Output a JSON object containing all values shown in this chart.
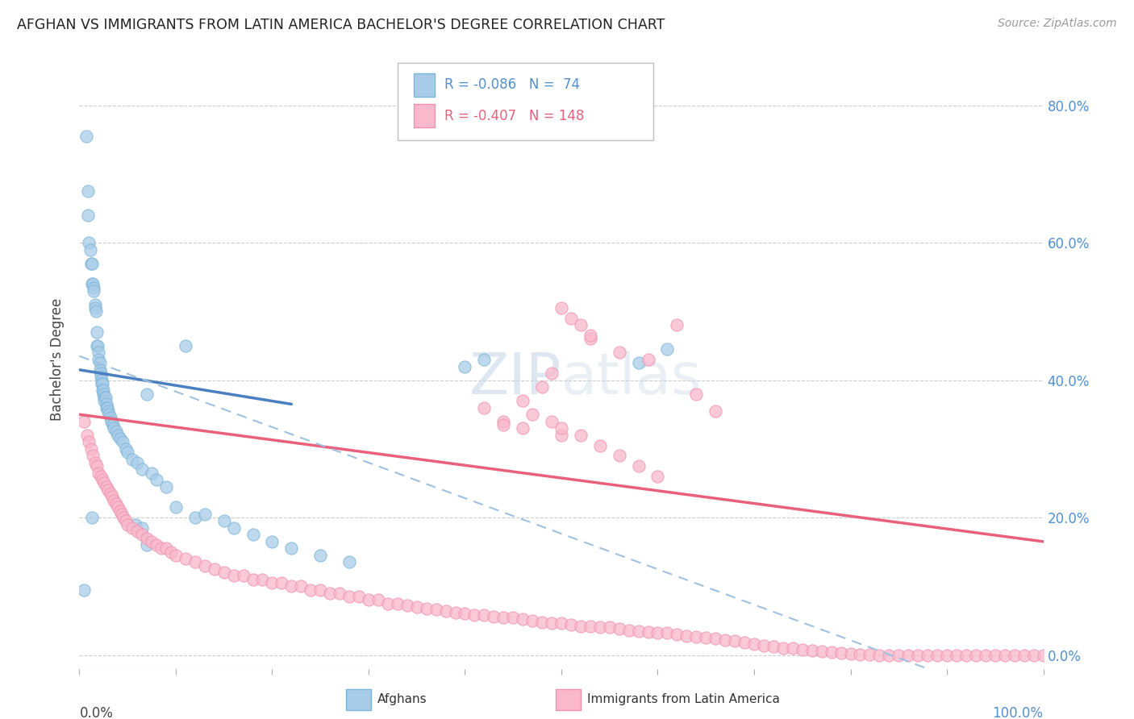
{
  "title": "AFGHAN VS IMMIGRANTS FROM LATIN AMERICA BACHELOR'S DEGREE CORRELATION CHART",
  "source": "Source: ZipAtlas.com",
  "ylabel": "Bachelor's Degree",
  "xlim": [
    0.0,
    1.0
  ],
  "ylim": [
    -0.02,
    0.88
  ],
  "ytick_values": [
    0.0,
    0.2,
    0.4,
    0.6,
    0.8
  ],
  "ytick_labels_right": [
    "0.0%",
    "20.0%",
    "40.0%",
    "60.0%",
    "80.0%"
  ],
  "blue_scatter_x": [
    0.005,
    0.007,
    0.009,
    0.009,
    0.01,
    0.011,
    0.012,
    0.013,
    0.013,
    0.014,
    0.015,
    0.015,
    0.016,
    0.016,
    0.017,
    0.018,
    0.018,
    0.019,
    0.02,
    0.02,
    0.021,
    0.021,
    0.022,
    0.022,
    0.023,
    0.023,
    0.024,
    0.024,
    0.025,
    0.025,
    0.026,
    0.026,
    0.027,
    0.028,
    0.028,
    0.029,
    0.03,
    0.031,
    0.032,
    0.033,
    0.035,
    0.036,
    0.038,
    0.04,
    0.042,
    0.045,
    0.048,
    0.05,
    0.055,
    0.06,
    0.065,
    0.07,
    0.075,
    0.08,
    0.09,
    0.1,
    0.11,
    0.12,
    0.13,
    0.15,
    0.16,
    0.18,
    0.2,
    0.22,
    0.25,
    0.28,
    0.013,
    0.058,
    0.065,
    0.07,
    0.4,
    0.42,
    0.58,
    0.61
  ],
  "blue_scatter_y": [
    0.095,
    0.755,
    0.675,
    0.64,
    0.6,
    0.59,
    0.57,
    0.57,
    0.54,
    0.54,
    0.535,
    0.53,
    0.51,
    0.505,
    0.5,
    0.47,
    0.45,
    0.45,
    0.44,
    0.43,
    0.425,
    0.415,
    0.41,
    0.405,
    0.4,
    0.395,
    0.395,
    0.385,
    0.385,
    0.38,
    0.375,
    0.37,
    0.375,
    0.365,
    0.36,
    0.36,
    0.355,
    0.35,
    0.345,
    0.34,
    0.335,
    0.33,
    0.325,
    0.32,
    0.315,
    0.31,
    0.3,
    0.295,
    0.285,
    0.28,
    0.27,
    0.38,
    0.265,
    0.255,
    0.245,
    0.215,
    0.45,
    0.2,
    0.205,
    0.195,
    0.185,
    0.175,
    0.165,
    0.155,
    0.145,
    0.135,
    0.2,
    0.19,
    0.185,
    0.16,
    0.42,
    0.43,
    0.425,
    0.445
  ],
  "pink_scatter_x": [
    0.005,
    0.008,
    0.01,
    0.012,
    0.014,
    0.016,
    0.018,
    0.02,
    0.022,
    0.024,
    0.026,
    0.028,
    0.03,
    0.032,
    0.034,
    0.036,
    0.038,
    0.04,
    0.042,
    0.044,
    0.046,
    0.048,
    0.05,
    0.055,
    0.06,
    0.065,
    0.07,
    0.075,
    0.08,
    0.085,
    0.09,
    0.095,
    0.1,
    0.11,
    0.12,
    0.13,
    0.14,
    0.15,
    0.16,
    0.17,
    0.18,
    0.19,
    0.2,
    0.21,
    0.22,
    0.23,
    0.24,
    0.25,
    0.26,
    0.27,
    0.28,
    0.29,
    0.3,
    0.31,
    0.32,
    0.33,
    0.34,
    0.35,
    0.36,
    0.37,
    0.38,
    0.39,
    0.4,
    0.41,
    0.42,
    0.43,
    0.44,
    0.45,
    0.46,
    0.47,
    0.48,
    0.49,
    0.5,
    0.51,
    0.52,
    0.53,
    0.54,
    0.55,
    0.56,
    0.57,
    0.58,
    0.59,
    0.6,
    0.61,
    0.62,
    0.63,
    0.64,
    0.65,
    0.66,
    0.67,
    0.68,
    0.69,
    0.7,
    0.71,
    0.72,
    0.73,
    0.74,
    0.75,
    0.76,
    0.77,
    0.78,
    0.79,
    0.8,
    0.81,
    0.82,
    0.83,
    0.84,
    0.85,
    0.86,
    0.87,
    0.88,
    0.89,
    0.9,
    0.91,
    0.92,
    0.93,
    0.94,
    0.95,
    0.96,
    0.97,
    0.98,
    0.99,
    1.0,
    0.42,
    0.44,
    0.46,
    0.5,
    0.53,
    0.56,
    0.59,
    0.62,
    0.64,
    0.66,
    0.44,
    0.46,
    0.47,
    0.49,
    0.5,
    0.52,
    0.54,
    0.56,
    0.58,
    0.6,
    0.5,
    0.51,
    0.52,
    0.53,
    0.48,
    0.49
  ],
  "pink_scatter_y": [
    0.34,
    0.32,
    0.31,
    0.3,
    0.29,
    0.28,
    0.275,
    0.265,
    0.26,
    0.255,
    0.25,
    0.245,
    0.24,
    0.235,
    0.23,
    0.225,
    0.22,
    0.215,
    0.21,
    0.205,
    0.2,
    0.195,
    0.19,
    0.185,
    0.18,
    0.175,
    0.17,
    0.165,
    0.16,
    0.155,
    0.155,
    0.15,
    0.145,
    0.14,
    0.135,
    0.13,
    0.125,
    0.12,
    0.115,
    0.115,
    0.11,
    0.11,
    0.105,
    0.105,
    0.1,
    0.1,
    0.095,
    0.095,
    0.09,
    0.09,
    0.085,
    0.085,
    0.08,
    0.08,
    0.075,
    0.075,
    0.072,
    0.07,
    0.068,
    0.066,
    0.064,
    0.062,
    0.06,
    0.058,
    0.058,
    0.056,
    0.055,
    0.054,
    0.052,
    0.05,
    0.048,
    0.046,
    0.046,
    0.044,
    0.042,
    0.042,
    0.04,
    0.04,
    0.038,
    0.036,
    0.035,
    0.034,
    0.032,
    0.032,
    0.03,
    0.028,
    0.026,
    0.025,
    0.024,
    0.022,
    0.02,
    0.018,
    0.016,
    0.014,
    0.012,
    0.01,
    0.01,
    0.008,
    0.006,
    0.005,
    0.004,
    0.003,
    0.002,
    0.001,
    0.001,
    0.0,
    0.0,
    0.0,
    0.0,
    0.0,
    0.0,
    0.0,
    0.0,
    0.0,
    0.0,
    0.0,
    0.0,
    0.0,
    0.0,
    0.0,
    0.0,
    0.0,
    0.0,
    0.36,
    0.34,
    0.33,
    0.32,
    0.46,
    0.44,
    0.43,
    0.48,
    0.38,
    0.355,
    0.335,
    0.37,
    0.35,
    0.34,
    0.33,
    0.32,
    0.305,
    0.29,
    0.275,
    0.26,
    0.505,
    0.49,
    0.48,
    0.465,
    0.39,
    0.41
  ],
  "blue_line_x0": 0.0,
  "blue_line_x1": 0.22,
  "blue_line_y0": 0.415,
  "blue_line_y1": 0.365,
  "pink_line_x0": 0.0,
  "pink_line_x1": 1.0,
  "pink_line_y0": 0.35,
  "pink_line_y1": 0.165,
  "blue_dash_line_x0": 0.0,
  "blue_dash_line_x1": 0.88,
  "blue_dash_line_y0": 0.435,
  "blue_dash_line_y1": -0.02,
  "blue_dot_color": "#a8cce8",
  "blue_dot_edge": "#7ab4d8",
  "pink_dot_color": "#f9b8cc",
  "pink_dot_edge": "#f090ac",
  "blue_line_color": "#4a7fc1",
  "pink_line_color": "#e8607a",
  "blue_dash_color": "#a0c0e0",
  "watermark_color": "#c8d8e8",
  "right_axis_color": "#5090d0",
  "grid_color": "#cccccc"
}
